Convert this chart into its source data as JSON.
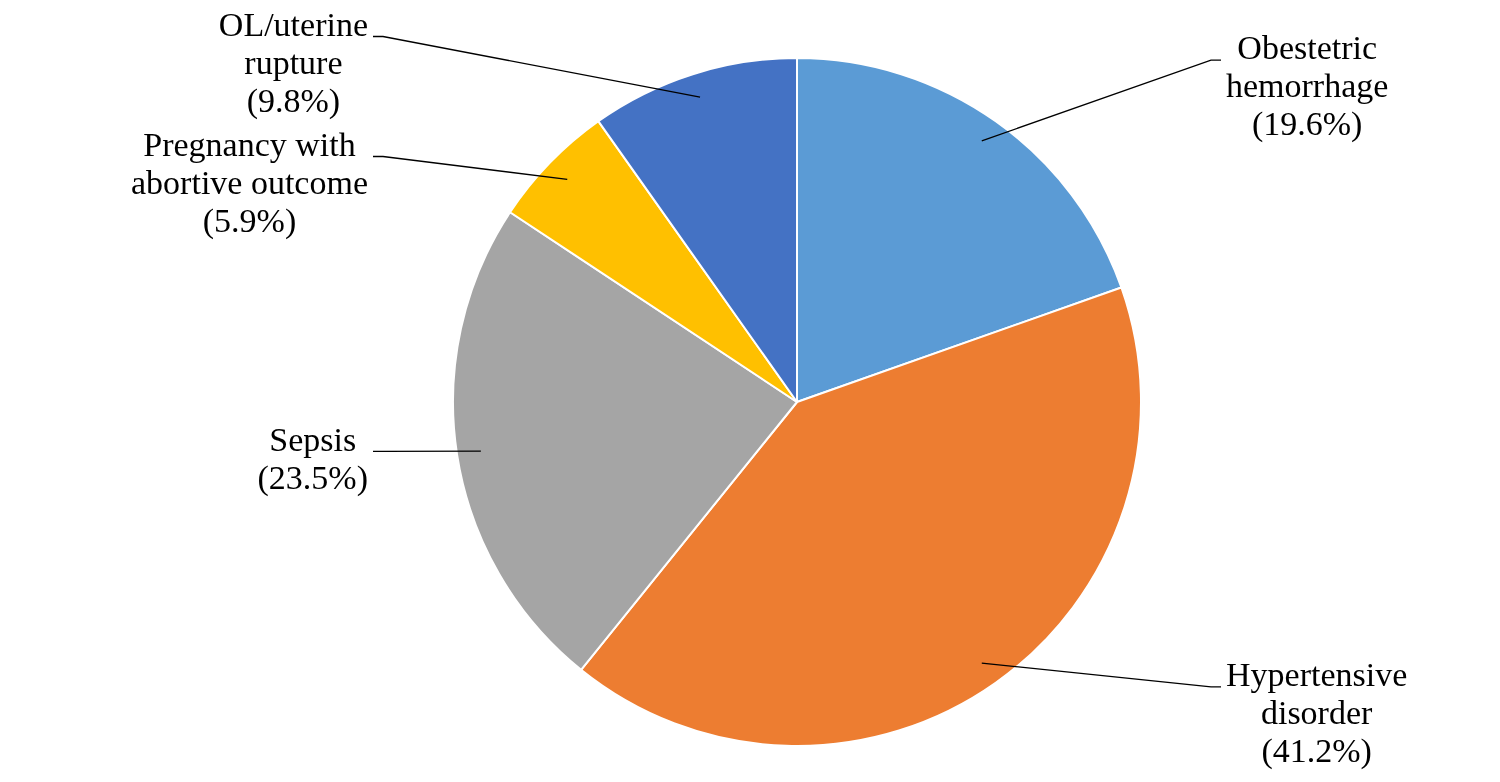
{
  "chart_data": {
    "type": "pie",
    "categories": [
      "Obestetric\nhemorrhage",
      "Hypertensive\ndisorder",
      "Sepsis",
      "Pregnancy with\nabortive outcome",
      "OL/uterine\nrupture"
    ],
    "values": [
      19.6,
      41.2,
      23.5,
      5.9,
      9.8
    ],
    "value_labels": [
      "(19.6%)",
      "(41.2%)",
      "(23.5%)",
      "(5.9%)",
      "(9.8%)"
    ],
    "colors": [
      "#5b9bd5",
      "#ed7d31",
      "#a5a5a5",
      "#ffc000",
      "#4472c4"
    ],
    "legend": false
  }
}
